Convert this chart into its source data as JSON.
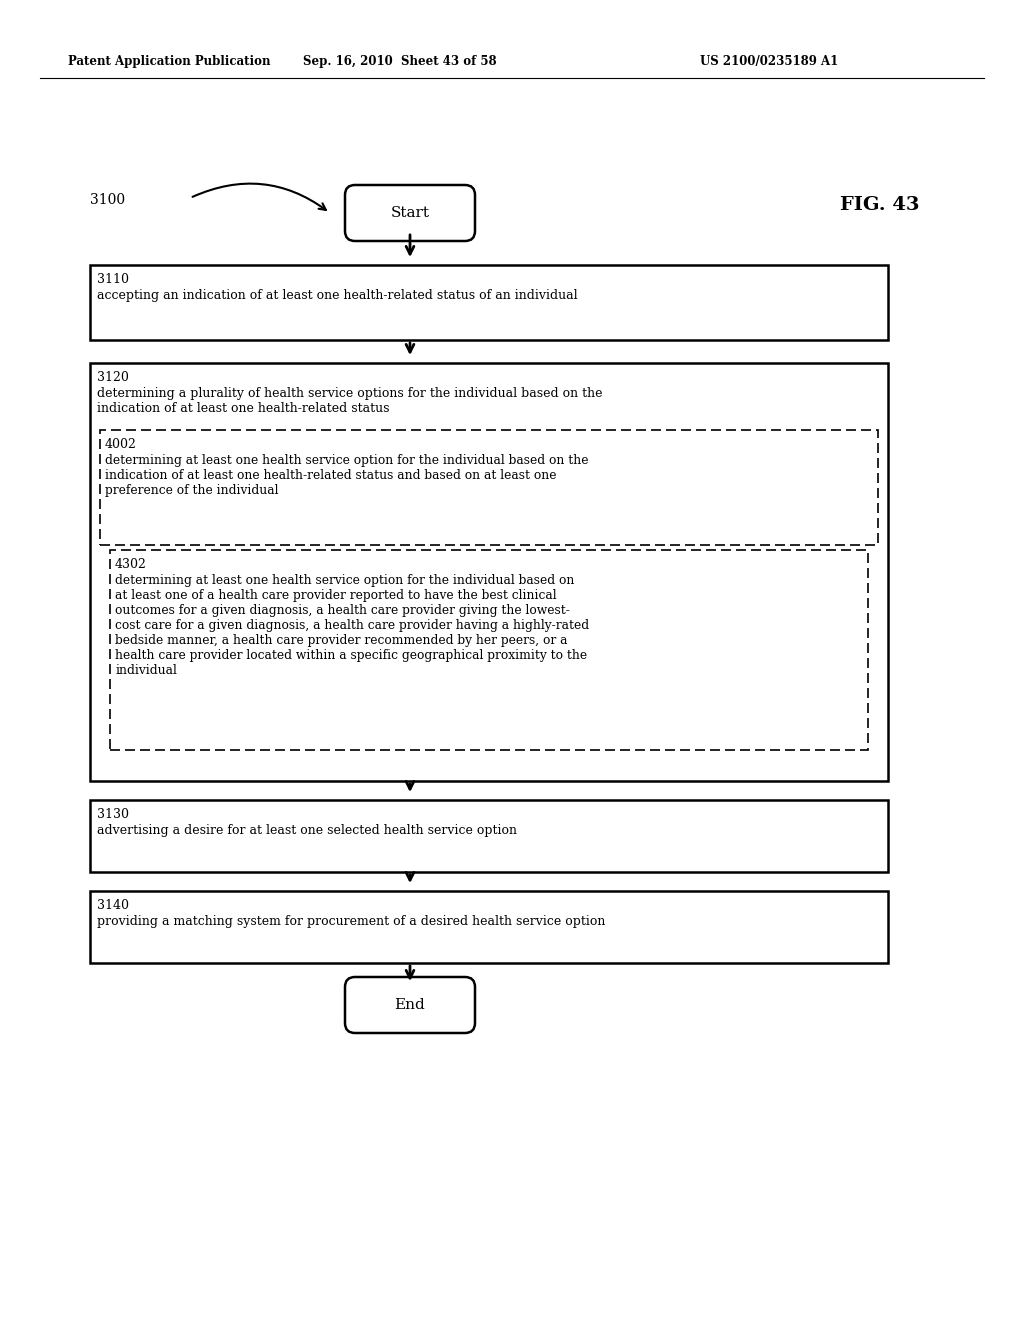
{
  "bg_color": "#ffffff",
  "header_left": "Patent Application Publication",
  "header_mid": "Sep. 16, 2010  Sheet 43 of 58",
  "header_right": "US 2100/0235189 A1",
  "fig_label": "FIG. 43",
  "diagram_label": "3100",
  "start_text": "Start",
  "end_text": "End",
  "box3110_label": "3110",
  "box3110_text": "accepting an indication of at least one health-related status of an individual",
  "box3120_label": "3120",
  "box3120_text": "determining a plurality of health service options for the individual based on the\nindication of at least one health-related status",
  "box4002_label": "4002",
  "box4002_text": "determining at least one health service option for the individual based on the\nindication of at least one health-related status and based on at least one\npreference of the individual",
  "box4302_label": "4302",
  "box4302_text": "determining at least one health service option for the individual based on\nat least one of a health care provider reported to have the best clinical\noutcomes for a given diagnosis, a health care provider giving the lowest-\ncost care for a given diagnosis, a health care provider having a highly-rated\nbedside manner, a health care provider recommended by her peers, or a\nhealth care provider located within a specific geographical proximity to the\nindividual",
  "box3130_label": "3130",
  "box3130_text": "advertising a desire for at least one selected health service option",
  "box3140_label": "3140",
  "box3140_text": "providing a matching system for procurement of a desired health service option"
}
